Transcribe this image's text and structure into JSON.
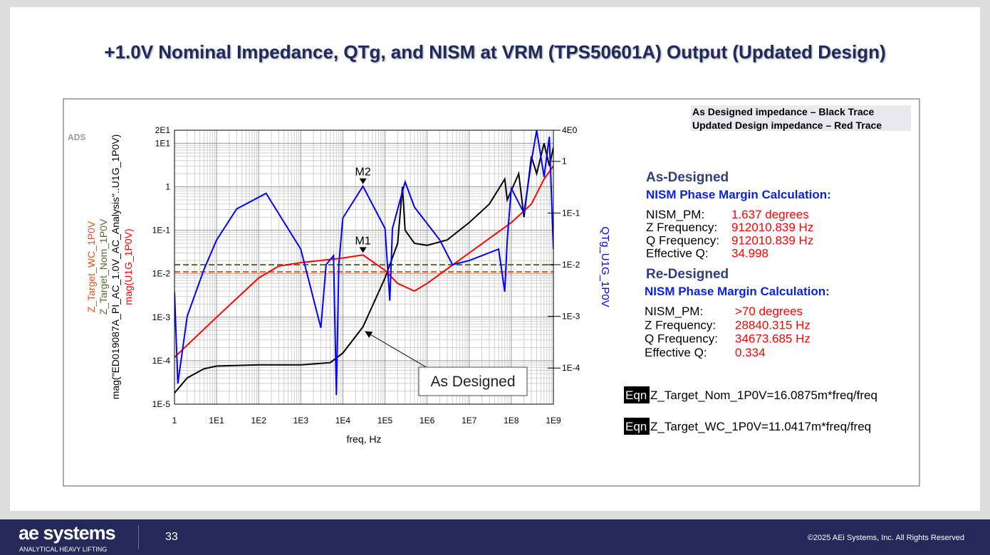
{
  "slide": {
    "title": "+1.0V Nominal Impedance, QTg, and NISM at VRM (TPS50601A) Output (Updated Design)",
    "tool_label": "ADS",
    "callout": "As Designed",
    "legend_box": [
      "As Designed impedance – Black Trace",
      "Updated Design impedance – Red Trace"
    ],
    "blocks": [
      {
        "heading": "As-Designed",
        "subheading": "NISM Phase Margin Calculation:",
        "rows": [
          [
            "NISM_PM:",
            "1.637 degrees"
          ],
          [
            "Z Frequency:",
            "912010.839 Hz"
          ],
          [
            "Q Frequency:",
            "912010.839 Hz"
          ],
          [
            "Effective Q:",
            "34.998"
          ]
        ]
      },
      {
        "heading": "Re-Designed",
        "subheading": "NISM Phase Margin Calculation:",
        "rows": [
          [
            "NISM_PM:",
            ">70 degrees"
          ],
          [
            "Z Frequency:",
            "28840.315 Hz"
          ],
          [
            "Q Frequency:",
            "34673.685 Hz"
          ],
          [
            "Effective Q:",
            "0.334"
          ]
        ]
      }
    ],
    "equations": [
      {
        "tag": "Eqn",
        "text": "Z_Target_Nom_1P0V=16.0875m*freq/freq"
      },
      {
        "tag": "Eqn",
        "text": "Z_Target_WC_1P0V=11.0417m*freq/freq"
      }
    ],
    "footer": {
      "logo": "ae systems",
      "tagline": "ANALYTICAL HEAVY LIFTING",
      "page": "33",
      "copyright": "©2025 AEi Systems, Inc. All Rights Reserved"
    }
  },
  "chart_data": {
    "type": "line",
    "x_label": "freq, Hz",
    "y2_label": "QTg_U1G_1P0V",
    "log_x": true,
    "log_y": true,
    "log_y2": true,
    "grid": true,
    "xlim": [
      1,
      1000000000
    ],
    "xticks": [
      1,
      {
        "value": 10,
        "label": "1E1"
      },
      {
        "value": 100,
        "label": "1E2"
      },
      {
        "value": 1000,
        "label": "1E3"
      },
      {
        "value": 10000,
        "label": "1E4"
      },
      {
        "value": 100000,
        "label": "1E5"
      },
      {
        "value": 1000000,
        "label": "1E6"
      },
      {
        "value": 10000000,
        "label": "1E7"
      },
      {
        "value": 100000000,
        "label": "1E8"
      },
      {
        "value": 1000000000,
        "label": "1E9"
      }
    ],
    "ylim": [
      1e-05,
      20
    ],
    "yticks": [
      {
        "value": 20,
        "label": "2E1"
      },
      {
        "value": 10,
        "label": "1E1"
      },
      1,
      {
        "value": 0.1,
        "label": "1E-1"
      },
      {
        "value": 0.01,
        "label": "1E-2"
      },
      {
        "value": 0.001,
        "label": "1E-3"
      },
      {
        "value": 0.0001,
        "label": "1E-4"
      },
      {
        "value": 1e-05,
        "label": "1E-5"
      }
    ],
    "y2lim": [
      2e-05,
      4
    ],
    "y2ticks": [
      {
        "value": 4,
        "label": "4E0"
      },
      1,
      {
        "value": 0.1,
        "label": "1E-1"
      },
      {
        "value": 0.01,
        "label": "1E-2"
      },
      {
        "value": 0.001,
        "label": "1E-3"
      },
      {
        "value": 0.0001,
        "label": "1E-4"
      }
    ],
    "series": [
      {
        "name": "Z_Target_WC_1P0V",
        "color": "#e8501c",
        "dashed": true,
        "x": [
          1,
          1000000000
        ],
        "values": [
          0.0110417,
          0.0110417
        ]
      },
      {
        "name": "Z_Target_Nom_1P0V",
        "color": "#556b2f",
        "dashed": true,
        "x": [
          1,
          1000000000
        ],
        "values": [
          0.0160875,
          0.0160875
        ]
      },
      {
        "name": "mag(\"ED019087A_PI_AC_1.0V_AC_Analysis\"..U1G_1P0V)",
        "color": "#000000",
        "x": [
          1,
          2,
          5,
          10,
          100,
          1000,
          5000,
          10000,
          30000,
          100000,
          200000,
          260000,
          300000,
          500000,
          1000000,
          3000000,
          10000000,
          30000000,
          70000000,
          80000000,
          150000000,
          200000000,
          300000000,
          400000000,
          600000000,
          800000000,
          1000000000
        ],
        "values": [
          1.8e-05,
          4e-05,
          6.5e-05,
          7.5e-05,
          8e-05,
          8e-05,
          9e-05,
          0.00015,
          0.0006,
          0.008,
          0.05,
          1,
          0.1,
          0.05,
          0.045,
          0.06,
          0.15,
          0.4,
          1.5,
          0.5,
          2,
          0.2,
          5,
          2,
          10,
          3,
          8
        ]
      },
      {
        "name": "mag(U1G_1P0V)",
        "color": "#ff0000",
        "x": [
          1,
          10,
          100,
          300,
          1000,
          10000,
          30000,
          100000,
          200000,
          500000,
          1000000,
          10000000,
          100000000,
          300000000,
          600000000,
          1000000000
        ],
        "values": [
          0.00012,
          0.001,
          0.008,
          0.015,
          0.018,
          0.023,
          0.027,
          0.012,
          0.006,
          0.004,
          0.006,
          0.03,
          0.15,
          0.4,
          1.5,
          3
        ]
      },
      {
        "name": "QTg_U1G_1P0V",
        "color": "#0000ff",
        "axis": "y2",
        "x": [
          1,
          1.2,
          2,
          5,
          10,
          30,
          150,
          1000,
          3000,
          4000,
          6000,
          7000,
          8000,
          10000,
          30000,
          100000,
          130000,
          150000,
          300000,
          500000,
          2000000,
          4000000,
          10000000,
          50000000,
          70000000,
          80000000,
          100000000,
          200000000,
          300000000,
          400000000,
          600000000,
          800000000,
          1000000000
        ],
        "values": [
          0.003,
          5e-05,
          0.001,
          0.008,
          0.03,
          0.12,
          0.24,
          0.02,
          0.0006,
          0.01,
          0.015,
          3e-05,
          0.01,
          0.08,
          0.33,
          0.05,
          0.002,
          0.05,
          0.4,
          0.13,
          0.03,
          0.01,
          0.012,
          0.02,
          0.003,
          0.03,
          0.3,
          0.1,
          1,
          4,
          0.5,
          3,
          0.02
        ]
      }
    ],
    "annotations": [
      {
        "text": "M1",
        "x": 30000,
        "y": 0.027
      },
      {
        "text": "M2",
        "x": 30000,
        "y": 0.33,
        "axis": "y2"
      }
    ]
  }
}
